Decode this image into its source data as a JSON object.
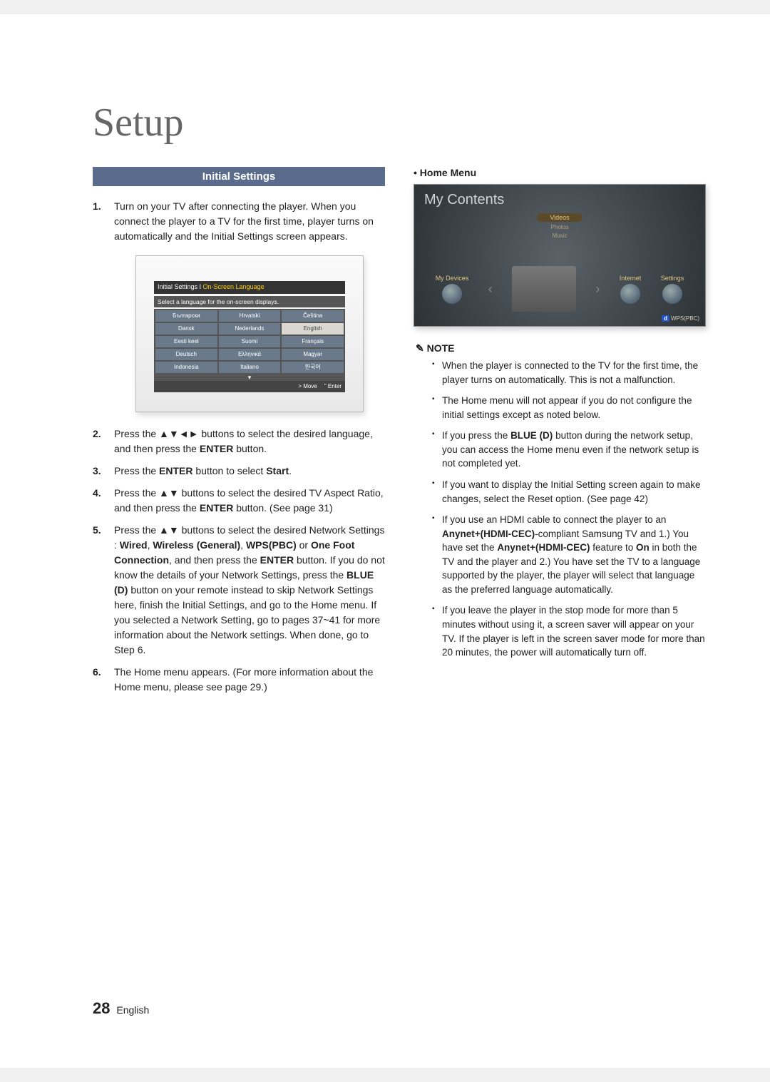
{
  "page": {
    "title": "Setup",
    "number": "28",
    "lang_label": "English"
  },
  "section_header": "Initial Settings",
  "steps": {
    "s1": "Turn on your TV after connecting the player. When you connect the player to a TV for the first time, player turns on automatically and the Initial Settings screen appears.",
    "s2_a": "Press the ▲▼◄► buttons to select the desired language, and then press the ",
    "s2_enter": "ENTER",
    "s2_b": " button.",
    "s3_a": "Press the ",
    "s3_enter": "ENTER",
    "s3_b": " button to select ",
    "s3_start": "Start",
    "s3_c": ".",
    "s4_a": "Press the ▲▼ buttons to select the desired TV Aspect Ratio, and then press the ",
    "s4_enter": "ENTER",
    "s4_b": " button. (See page 31)",
    "s5_a": "Press the ▲▼ buttons to select the desired Network Settings : ",
    "s5_wired": "Wired",
    "s5_sep1": ", ",
    "s5_wireless": "Wireless (General)",
    "s5_sep2": ", ",
    "s5_wps": "WPS(PBC)",
    "s5_or": " or ",
    "s5_onefoot": "One Foot Connection",
    "s5_b": ", and then press the ",
    "s5_enter": "ENTER",
    "s5_c": " button. If you do not know the details of your Network Settings, press the ",
    "s5_blue": "BLUE (D)",
    "s5_d": " button on your remote instead to skip Network Settings here, finish the Initial Settings, and go to the Home menu. If you selected a Network Setting, go to pages 37~41 for more information about the Network settings. When done, go to Step 6.",
    "s6": "The Home menu appears. (For more information about the Home menu, please see page 29.)"
  },
  "lang_screen": {
    "title_a": "Initial Settings I",
    "title_b": " On-Screen Language",
    "subtitle": "Select a language for the on-screen displays.",
    "cells": [
      [
        "Български",
        "Hrvatski",
        "Čeština"
      ],
      [
        "Dansk",
        "Nederlands",
        "English"
      ],
      [
        "Eesti keel",
        "Suomi",
        "Français"
      ],
      [
        "Deutsch",
        "Ελληνικά",
        "Magyar"
      ],
      [
        "Indonesia",
        "Italiano",
        "한국어"
      ]
    ],
    "selected_row": 1,
    "selected_col": 2,
    "footer_move": "> Move",
    "footer_enter": "\" Enter"
  },
  "home_menu": {
    "bullet": "• Home Menu",
    "title": "My Contents",
    "tab_main": "Videos",
    "tab_sub1": "Photos",
    "tab_sub2": "Music",
    "left": "My Devices",
    "right1": "Internet",
    "right2": "Settings",
    "wps_label": "WPS(PBC)",
    "wps_d": "d"
  },
  "note": {
    "header": "✎ NOTE",
    "n1": "When the player is connected to the TV for the first time, the player turns on automatically. This is not a malfunction.",
    "n2": "The Home menu will not appear if you do not configure the initial settings except as noted below.",
    "n3_a": "If you press the ",
    "n3_blue": "BLUE (D)",
    "n3_b": " button during the network setup, you can access the Home menu even if the network setup is not completed yet.",
    "n4": "If you want to display the Initial Setting screen again to make changes, select the Reset option. (See page 42)",
    "n5_a": "If you use an HDMI cable to connect the player to an ",
    "n5_any1": "Anynet+(HDMI-CEC)",
    "n5_b": "-compliant Samsung TV and 1.) You have set the ",
    "n5_any2": "Anynet+(HDMI-CEC)",
    "n5_c": " feature to ",
    "n5_on": "On",
    "n5_d": " in both the TV and the player and 2.) You have set the TV to a language supported by the player, the player will select that language as the preferred language automatically.",
    "n6": "If you leave the player in the stop mode for more than 5 minutes without using it, a screen saver will appear on your TV. If the player is left in the screen saver mode for more than 20 minutes, the power will automatically turn off."
  },
  "colors": {
    "header_bg": "#5a6b8c"
  }
}
